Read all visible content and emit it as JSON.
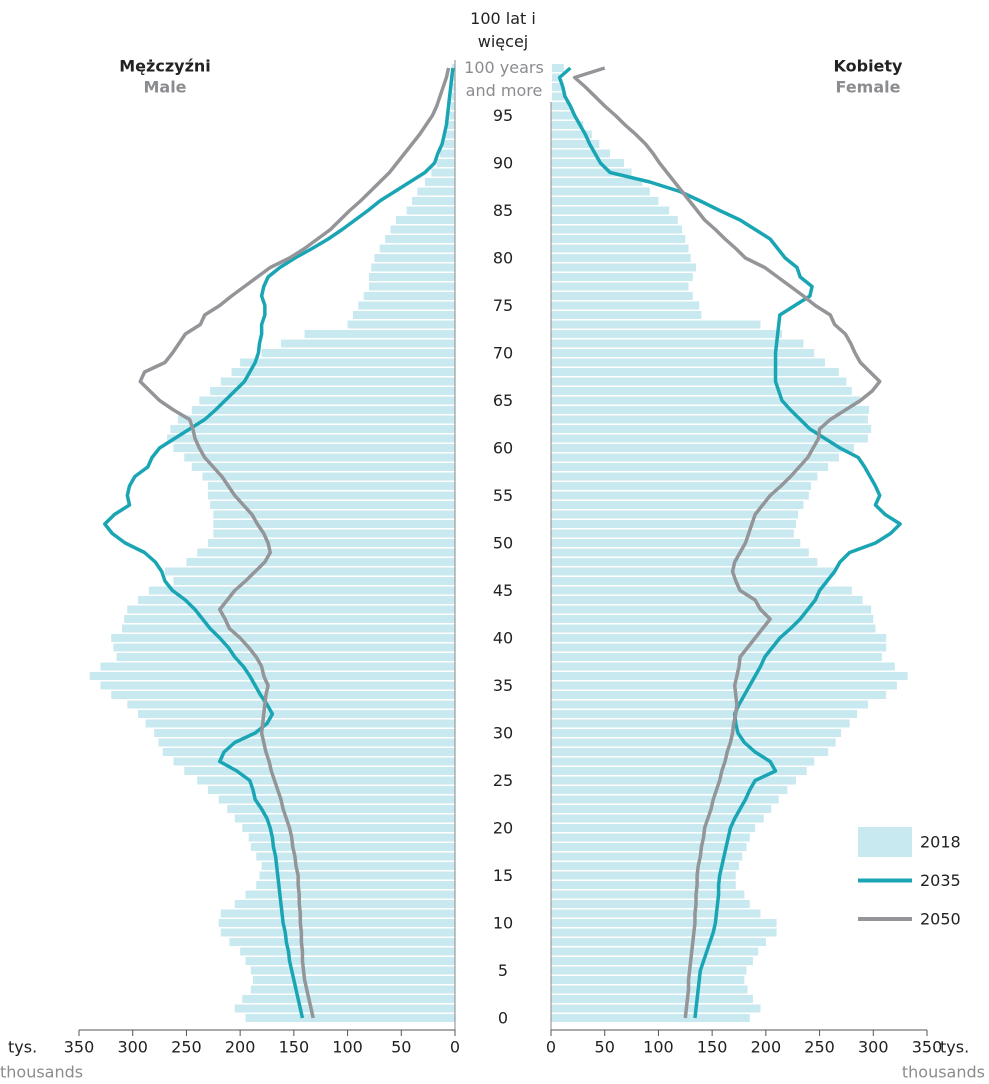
{
  "chart_data": {
    "type": "pyramid",
    "male_title": "Mężczyźni",
    "male_subtitle": "Male",
    "female_title": "Kobiety",
    "female_subtitle": "Female",
    "x_unit": "tys.",
    "x_unit_en": "thousands",
    "xlim": [
      0,
      350
    ],
    "xticks": [
      0,
      50,
      100,
      150,
      200,
      250,
      300,
      350
    ],
    "ylim": [
      0,
      100
    ],
    "yticks": [
      0,
      5,
      10,
      15,
      20,
      25,
      30,
      35,
      40,
      45,
      50,
      55,
      60,
      65,
      70,
      75,
      80,
      85,
      90,
      95,
      {
        "value": 100,
        "label": "100 lat i więcej",
        "label_en": "100 years and more"
      }
    ],
    "series": [
      {
        "name": "2018",
        "color": "#c8e9ef",
        "style": "bar",
        "male": [
          195,
          205,
          198,
          190,
          188,
          190,
          195,
          200,
          210,
          218,
          220,
          218,
          205,
          195,
          185,
          182,
          180,
          185,
          190,
          192,
          198,
          205,
          212,
          220,
          230,
          240,
          252,
          262,
          272,
          276,
          280,
          288,
          295,
          305,
          320,
          330,
          340,
          330,
          315,
          318,
          320,
          310,
          308,
          305,
          295,
          285,
          262,
          270,
          250,
          240,
          230,
          225,
          225,
          225,
          228,
          230,
          230,
          235,
          245,
          252,
          262,
          268,
          265,
          258,
          245,
          238,
          228,
          218,
          208,
          200,
          180,
          162,
          140,
          100,
          95,
          90,
          85,
          80,
          80,
          78,
          75,
          70,
          65,
          60,
          55,
          45,
          40,
          35,
          28,
          22,
          17,
          14,
          11,
          9,
          7,
          5,
          4,
          3,
          2,
          1.5,
          3
        ],
        "female": [
          185,
          195,
          188,
          183,
          180,
          182,
          188,
          193,
          200,
          210,
          210,
          195,
          185,
          180,
          172,
          172,
          175,
          178,
          182,
          185,
          190,
          198,
          205,
          212,
          220,
          228,
          238,
          245,
          258,
          265,
          270,
          278,
          285,
          295,
          312,
          322,
          332,
          320,
          308,
          312,
          312,
          302,
          300,
          298,
          290,
          280,
          258,
          265,
          248,
          240,
          232,
          226,
          228,
          230,
          235,
          240,
          242,
          248,
          258,
          268,
          282,
          295,
          298,
          295,
          296,
          288,
          280,
          275,
          268,
          255,
          245,
          235,
          215,
          195,
          140,
          138,
          132,
          128,
          132,
          135,
          130,
          128,
          125,
          122,
          118,
          110,
          100,
          92,
          85,
          75,
          68,
          55,
          45,
          38,
          30,
          22,
          18,
          12,
          10,
          8,
          12
        ]
      },
      {
        "name": "2035",
        "color": "#1aa5b5",
        "style": "line",
        "male": [
          142,
          144,
          146,
          148,
          150,
          152,
          154,
          155,
          157,
          158,
          160,
          161,
          162,
          163,
          164,
          165,
          166,
          167,
          169,
          170,
          172,
          175,
          180,
          186,
          188,
          191,
          203,
          219,
          215,
          205,
          186,
          175,
          170,
          175,
          181,
          186,
          191,
          197,
          205,
          211,
          219,
          228,
          235,
          242,
          251,
          263,
          270,
          273,
          279,
          289,
          307,
          319,
          326,
          317,
          303,
          305,
          303,
          298,
          286,
          282,
          275,
          261,
          247,
          233,
          223,
          214,
          205,
          196,
          191,
          186,
          183,
          182,
          180,
          180,
          177,
          177,
          180,
          178,
          174,
          163,
          149,
          133,
          118,
          105,
          93,
          81,
          70,
          56,
          42,
          28,
          19,
          16,
          12,
          10,
          8,
          7,
          6,
          5,
          4,
          3,
          2
        ],
        "female": [
          134,
          135,
          136,
          137,
          138,
          139,
          142,
          145,
          148,
          151,
          153,
          154,
          155,
          156,
          156,
          157,
          159,
          161,
          163,
          165,
          167,
          171,
          176,
          181,
          185,
          190,
          209,
          204,
          190,
          180,
          174,
          172,
          171,
          175,
          180,
          185,
          190,
          195,
          199,
          206,
          213,
          223,
          232,
          239,
          246,
          250,
          257,
          264,
          269,
          278,
          302,
          316,
          325,
          311,
          302,
          306,
          302,
          297,
          292,
          286,
          269,
          255,
          241,
          232,
          223,
          215,
          212,
          209,
          209,
          209,
          209,
          210,
          211,
          212,
          213,
          227,
          241,
          243,
          232,
          229,
          218,
          211,
          204,
          190,
          176,
          157,
          139,
          120,
          92,
          55,
          46,
          41,
          36,
          32,
          27,
          22,
          18,
          13,
          11,
          8,
          18
        ]
      },
      {
        "name": "2050",
        "color": "#939598",
        "style": "line",
        "male": [
          132,
          134,
          136,
          138,
          140,
          141,
          142,
          142,
          143,
          143,
          144,
          144,
          145,
          145,
          146,
          146,
          148,
          149,
          151,
          152,
          154,
          157,
          160,
          162,
          165,
          168,
          171,
          173,
          176,
          178,
          180,
          179,
          178,
          177,
          176,
          174,
          178,
          180,
          185,
          192,
          200,
          210,
          214,
          219,
          212,
          205,
          195,
          186,
          177,
          172,
          174,
          178,
          184,
          189,
          197,
          205,
          211,
          217,
          225,
          233,
          238,
          242,
          244,
          247,
          262,
          275,
          284,
          293,
          289,
          270,
          263,
          257,
          251,
          237,
          233,
          219,
          208,
          196,
          184,
          172,
          154,
          140,
          128,
          116,
          107,
          98,
          88,
          79,
          70,
          61,
          54,
          47,
          40,
          33,
          27,
          21,
          17,
          14,
          11,
          8,
          6
        ],
        "female": [
          125,
          126,
          127,
          128,
          128,
          129,
          130,
          131,
          132,
          133,
          134,
          134,
          135,
          135,
          136,
          136,
          137,
          139,
          140,
          142,
          143,
          146,
          149,
          151,
          154,
          157,
          159,
          162,
          164,
          167,
          169,
          170,
          172,
          173,
          172,
          171,
          173,
          175,
          176,
          183,
          190,
          197,
          204,
          195,
          190,
          176,
          172,
          169,
          171,
          176,
          181,
          184,
          187,
          190,
          197,
          204,
          214,
          223,
          231,
          239,
          244,
          249,
          250,
          260,
          274,
          288,
          299,
          306,
          297,
          288,
          283,
          279,
          274,
          264,
          260,
          246,
          235,
          223,
          211,
          199,
          181,
          172,
          162,
          153,
          143,
          136,
          129,
          122,
          115,
          108,
          101,
          95,
          88,
          79,
          69,
          60,
          50,
          41,
          32,
          22,
          50
        ]
      }
    ]
  }
}
